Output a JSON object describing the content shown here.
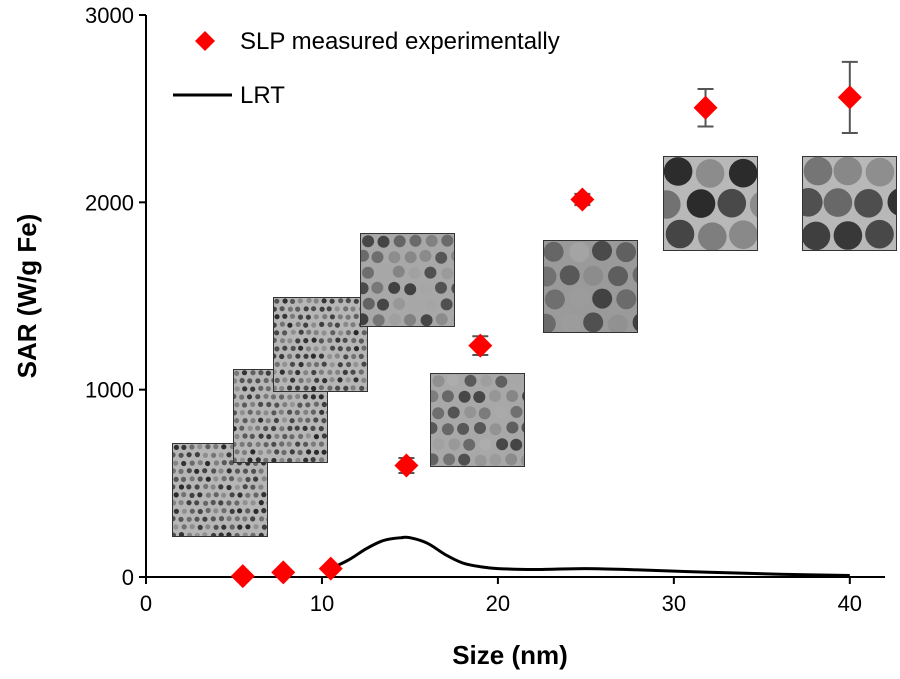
{
  "chart_data": {
    "type": "scatter",
    "xlabel": "Size (nm)",
    "ylabel": "SAR (W/g Fe)",
    "xlim": [
      0,
      42
    ],
    "ylim": [
      0,
      3000
    ],
    "xticks": [
      0,
      10,
      20,
      30,
      40
    ],
    "yticks": [
      0,
      1000,
      2000,
      3000
    ],
    "grid": false,
    "legend": {
      "placement": "top-left"
    },
    "series": [
      {
        "name": "SLP measured experimentally",
        "kind": "scatter",
        "marker": "diamond",
        "color": "#ff0000",
        "x": [
          5.5,
          7.8,
          10.5,
          14.8,
          19.0,
          24.8,
          31.8,
          40.0
        ],
        "y": [
          5,
          25,
          45,
          595,
          1235,
          2015,
          2505,
          2560
        ],
        "error": [
          0,
          0,
          0,
          40,
          50,
          30,
          100,
          190
        ]
      },
      {
        "name": "LRT",
        "kind": "line",
        "color": "#000000",
        "x": [
          10.5,
          11.5,
          12.5,
          13.5,
          14.5,
          15.0,
          16.0,
          17.0,
          18.0,
          19.0,
          20.0,
          22.0,
          25.0,
          28.0,
          32.0,
          36.0,
          40.0
        ],
        "y": [
          45,
          90,
          150,
          195,
          210,
          210,
          180,
          120,
          75,
          55,
          45,
          40,
          45,
          38,
          25,
          15,
          8
        ]
      }
    ],
    "insets": [
      {
        "name": "tem-image",
        "pattern": "fine"
      },
      {
        "name": "tem-image",
        "pattern": "fine"
      },
      {
        "name": "tem-image",
        "pattern": "fine"
      },
      {
        "name": "tem-image",
        "pattern": "medium"
      },
      {
        "name": "tem-image",
        "pattern": "medium"
      },
      {
        "name": "tem-image",
        "pattern": "large"
      },
      {
        "name": "tem-image",
        "pattern": "xlarge"
      },
      {
        "name": "tem-image",
        "pattern": "xlarge"
      }
    ]
  }
}
